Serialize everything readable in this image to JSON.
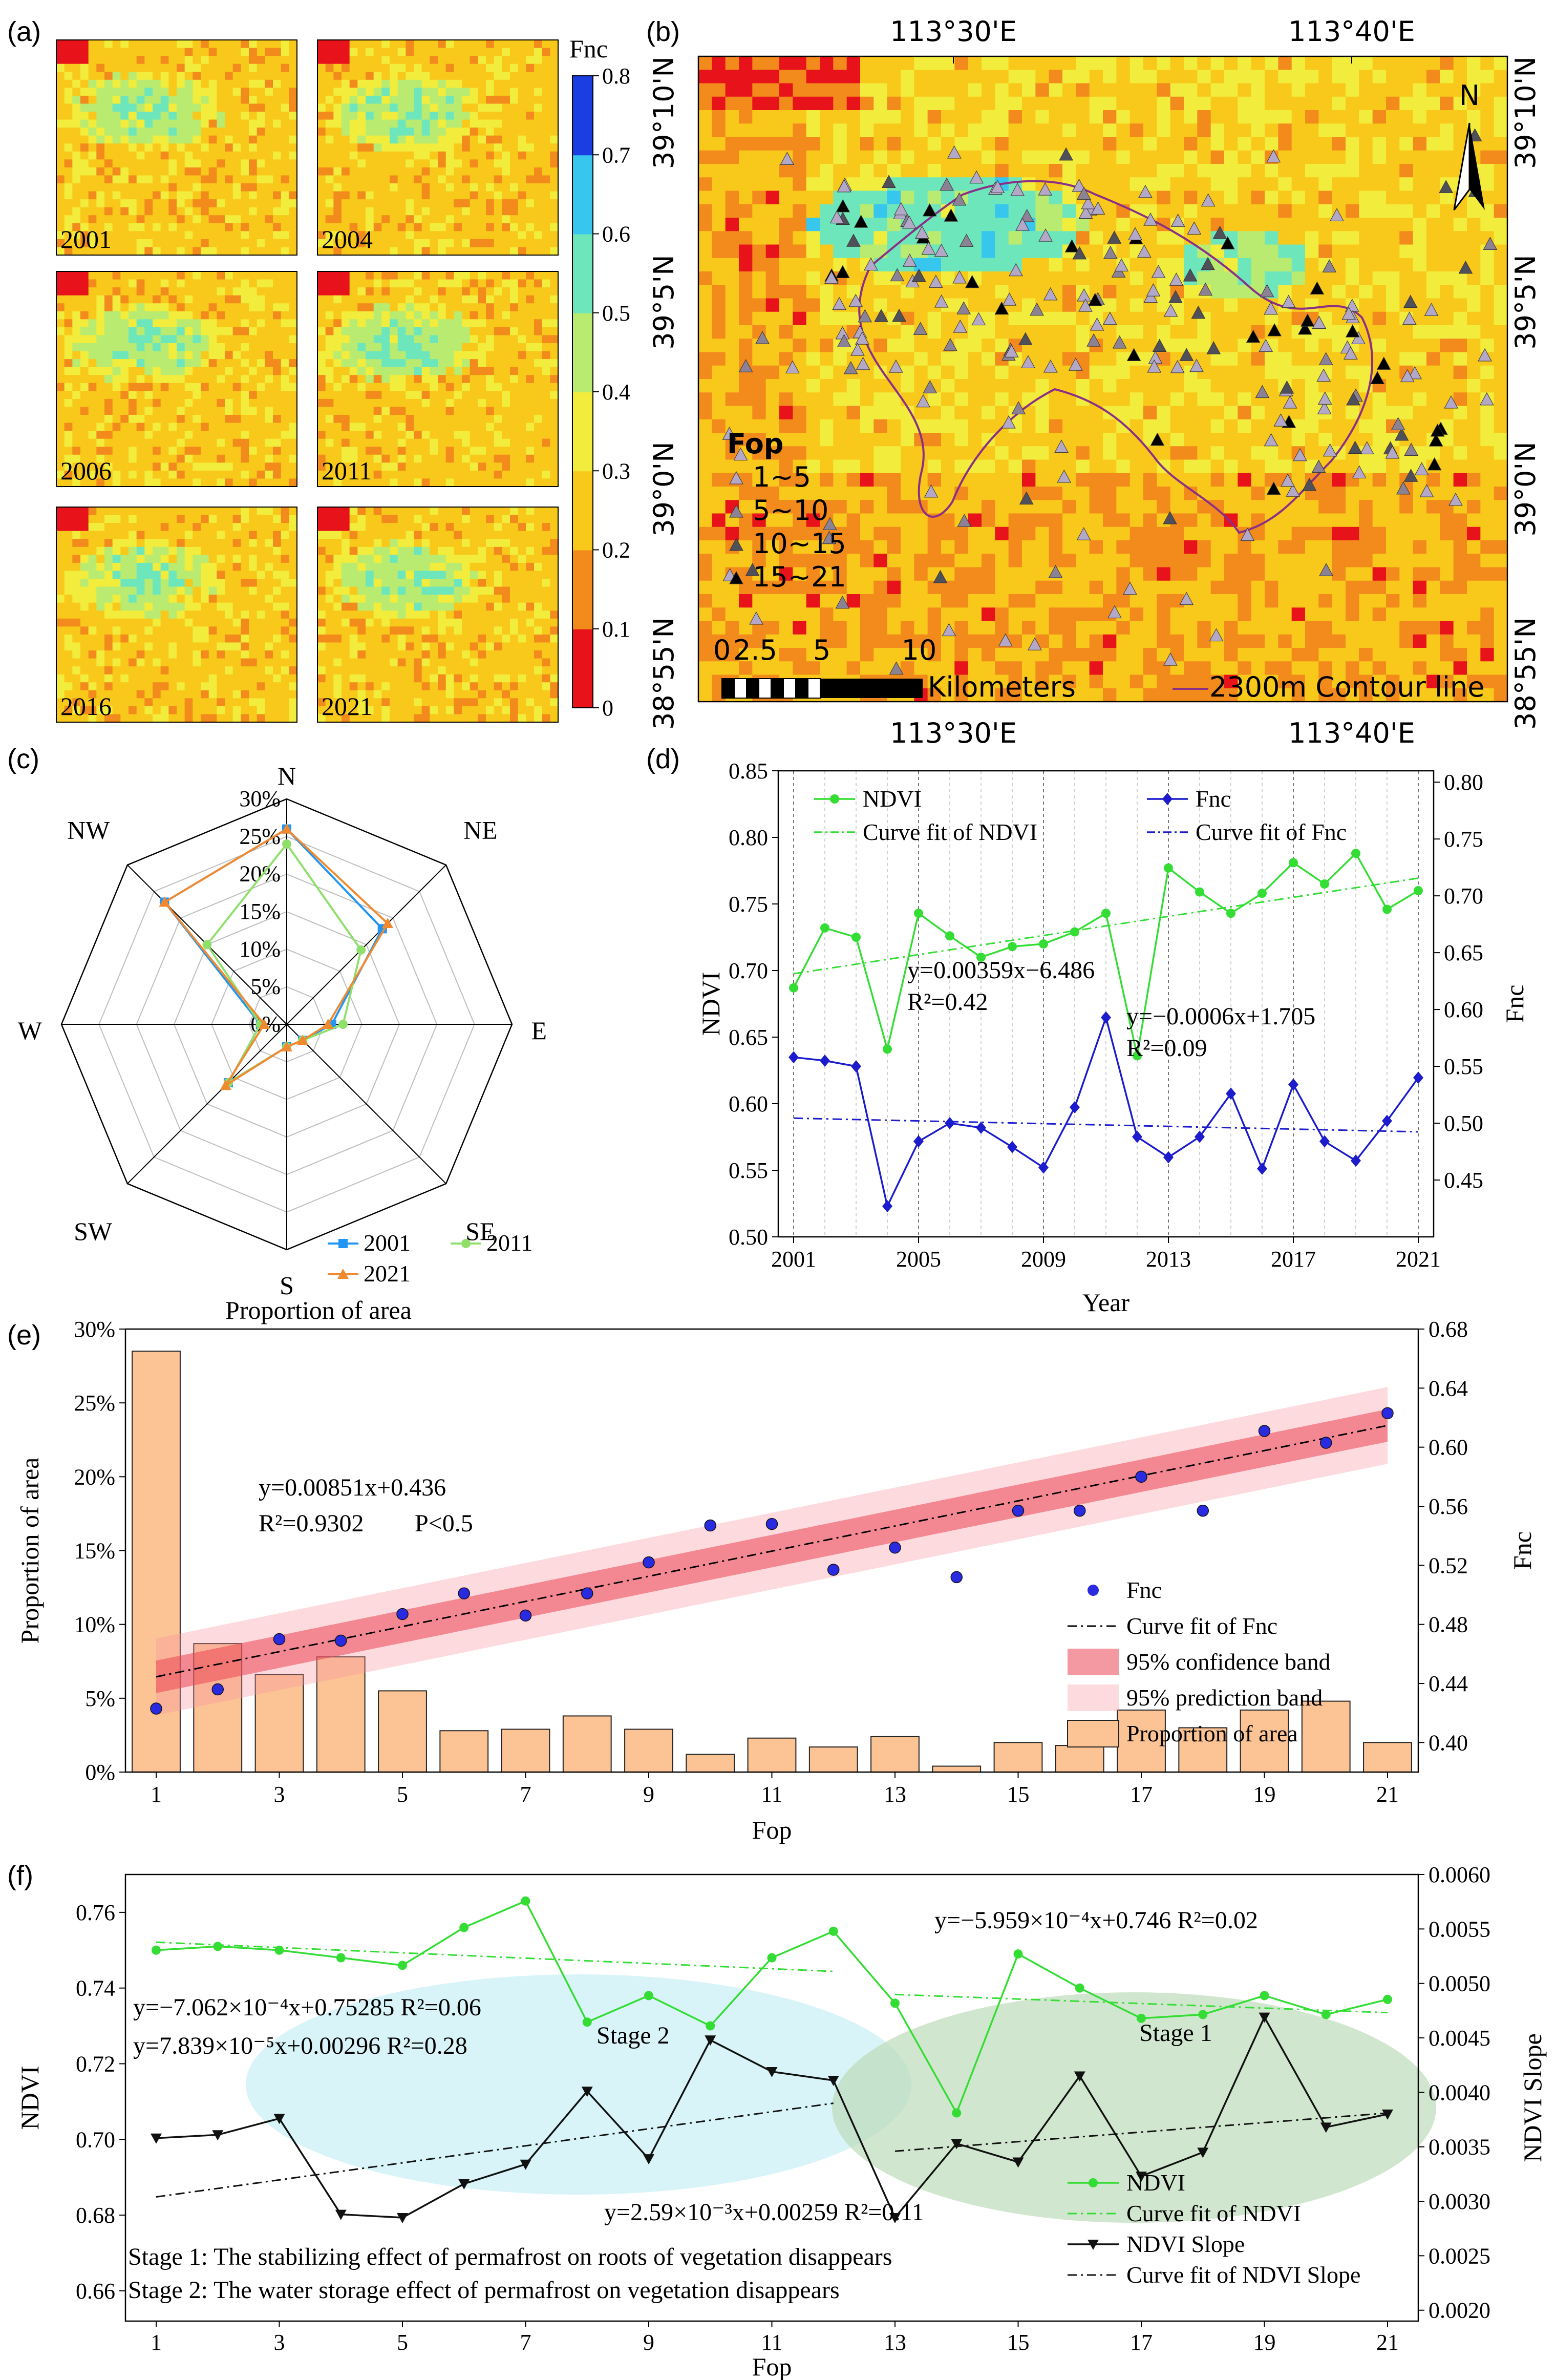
{
  "panels": {
    "a": {
      "tag": "(a)",
      "colorbar_title": "Fnc",
      "colorbar_ticks": [
        "0",
        "0.1",
        "0.2",
        "0.3",
        "0.4",
        "0.5",
        "0.6",
        "0.7",
        "0.8"
      ],
      "colorbar_colors": [
        "#e8121b",
        "#f28a1c",
        "#f8c81a",
        "#f2ec3c",
        "#b8eb70",
        "#6ee6bc",
        "#36c6ee",
        "#3a86ee",
        "#1a3ee2"
      ],
      "years": [
        "2001",
        "2004",
        "2006",
        "2011",
        "2016",
        "2021"
      ]
    },
    "b": {
      "tag": "(b)",
      "top_lon_labels": [
        "113°30'E",
        "113°40'E"
      ],
      "bottom_lon_labels": [
        "113°30'E",
        "113°40'E"
      ],
      "left_lat_labels": [
        "39°10'N",
        "39°5'N",
        "39°0'N",
        "38°55'N"
      ],
      "right_lat_labels": [
        "39°10'N",
        "39°5'N",
        "39°0'N",
        "38°55'N"
      ],
      "north_label": "N",
      "legend_title": "Fop",
      "legend_items": [
        "1~5",
        "5~10",
        "10~15",
        "15~21"
      ],
      "legend_marker_colors": [
        "#b4a8c8",
        "#8c8296",
        "#50505a",
        "#000000"
      ],
      "scale_labels": [
        "0",
        "2.5",
        "5",
        "10"
      ],
      "scale_unit": "Kilometers",
      "contour_label": "2300m Contour line",
      "contour_color": "#8a2e86"
    },
    "c": {
      "tag": "(c)",
      "directions": [
        "N",
        "NE",
        "E",
        "SE",
        "S",
        "SW",
        "W",
        "NW"
      ],
      "radial_ticks": [
        "0%",
        "5%",
        "10%",
        "15%",
        "20%",
        "25%",
        "30%"
      ],
      "caption": "Proportion of area",
      "chart_data": {
        "type": "radar",
        "categories": [
          "N",
          "NE",
          "E",
          "SE",
          "S",
          "SW",
          "W",
          "NW"
        ],
        "rmax": 30,
        "series": [
          {
            "name": "2001",
            "color": "#2196f3",
            "marker": "square",
            "values": [
              26,
              18,
              6,
              3,
              3,
              11,
              3.5,
              23
            ]
          },
          {
            "name": "2011",
            "color": "#8fe06a",
            "marker": "circle",
            "values": [
              24,
              14,
              7.5,
              3,
              3,
              11,
              3.5,
              15
            ]
          },
          {
            "name": "2021",
            "color": "#f08a30",
            "marker": "triangle",
            "values": [
              26,
              19,
              5.5,
              3,
              3,
              11.5,
              3,
              23
            ]
          }
        ]
      }
    },
    "d": {
      "tag": "(d)",
      "xlabel": "Year",
      "ylabel": "NDVI",
      "y2label": "Fnc",
      "legend": [
        "NDVI",
        "Fnc",
        "Curve fit of NDVI",
        "Curve fit of Fnc"
      ],
      "eq1": "y=0.00359x−6.486",
      "r2_1": "R²=0.42",
      "eq2": "y=−0.0006x+1.705",
      "r2_2": "R²=0.09",
      "chart_data": {
        "type": "line",
        "x": [
          2001,
          2002,
          2003,
          2004,
          2005,
          2006,
          2007,
          2008,
          2009,
          2010,
          2011,
          2012,
          2013,
          2014,
          2015,
          2016,
          2017,
          2018,
          2019,
          2020,
          2021
        ],
        "xticks": [
          "2001",
          "2005",
          "2009",
          "2013",
          "2017",
          "2021"
        ],
        "ylim": [
          0.5,
          0.85
        ],
        "yticks": [
          "0.50",
          "0.55",
          "0.60",
          "0.65",
          "0.70",
          "0.75",
          "0.80",
          "0.85"
        ],
        "y2lim": [
          0.4,
          0.81
        ],
        "y2ticks": [
          "0.45",
          "0.50",
          "0.55",
          "0.60",
          "0.65",
          "0.70",
          "0.75",
          "0.80"
        ],
        "series": [
          {
            "name": "NDVI",
            "axis": "left",
            "color": "#33dd33",
            "values": [
              0.687,
              0.732,
              0.725,
              0.641,
              0.743,
              0.726,
              0.71,
              0.718,
              0.72,
              0.729,
              0.743,
              0.636,
              0.777,
              0.759,
              0.743,
              0.758,
              0.781,
              0.765,
              0.788,
              0.746,
              0.76
            ],
            "fit": [
              0.00359,
              -6.486
            ]
          },
          {
            "name": "Fnc",
            "axis": "right",
            "color": "#1c1ccc",
            "values": [
              0.558,
              0.555,
              0.55,
              0.427,
              0.484,
              0.5,
              0.496,
              0.479,
              0.461,
              0.514,
              0.593,
              0.488,
              0.47,
              0.488,
              0.526,
              0.46,
              0.534,
              0.484,
              0.467,
              0.502,
              0.54
            ],
            "fit": [
              -0.0006,
              1.705
            ]
          }
        ]
      }
    },
    "e": {
      "tag": "(e)",
      "xlabel": "Fop",
      "ylabel": "Proportion of area",
      "y2label": "Fnc",
      "eq": "y=0.00851x+0.436",
      "r2": "R²=0.9302",
      "p": "P<0.5",
      "legend": [
        "Fnc",
        "Curve fit of Fnc",
        "95% confidence band",
        "95% prediction band",
        "Proportion of area"
      ],
      "chart_data": {
        "type": "bar",
        "categories": [
          1,
          2,
          3,
          4,
          5,
          6,
          7,
          8,
          9,
          10,
          11,
          12,
          13,
          14,
          15,
          16,
          17,
          18,
          19,
          20,
          21
        ],
        "xticks": [
          "1",
          "3",
          "5",
          "7",
          "9",
          "11",
          "13",
          "15",
          "17",
          "19",
          "21"
        ],
        "ylim": [
          0,
          30
        ],
        "yticks": [
          "0%",
          "5%",
          "10%",
          "15%",
          "20%",
          "25%",
          "30%"
        ],
        "y2lim": [
          0.38,
          0.68
        ],
        "y2ticks": [
          "0.40",
          "0.44",
          "0.48",
          "0.52",
          "0.56",
          "0.60",
          "0.64",
          "0.68"
        ],
        "bars": {
          "name": "Proportion of area",
          "color": "#fcc394",
          "values": [
            28.5,
            8.7,
            6.6,
            7.8,
            5.5,
            2.8,
            2.9,
            3.8,
            2.9,
            1.2,
            2.3,
            1.7,
            2.4,
            0.4,
            2.0,
            1.8,
            4.2,
            3.0,
            4.2,
            4.8,
            2.0
          ]
        },
        "points": {
          "name": "Fnc",
          "color": "#2a2ae0",
          "values": [
            0.423,
            0.436,
            0.47,
            0.469,
            0.487,
            0.501,
            0.486,
            0.501,
            0.522,
            0.547,
            0.548,
            0.517,
            0.532,
            0.512,
            0.557,
            0.557,
            0.58,
            0.557,
            0.611,
            0.603,
            0.623
          ]
        },
        "fit": [
          0.00851,
          0.436
        ]
      }
    },
    "f": {
      "tag": "(f)",
      "xlabel": "Fop",
      "ylabel": "NDVI",
      "y2label": "NDVI Slope",
      "eq_top": "y=−5.959×10⁻⁴x+0.746    R²=0.02",
      "eq_a": "y=−7.062×10⁻⁴x+0.75285    R²=0.06",
      "eq_b": "y=7.839×10⁻⁵x+0.00296    R²=0.28",
      "eq_c": "y=2.59×10⁻³x+0.00259    R²=0.11",
      "stage1": "Stage 1",
      "stage2": "Stage 2",
      "note1": "Stage 1: The stabilizing effect of permafrost on roots of vegetation disappears",
      "note2": "Stage 2: The water storage effect of permafrost on vegetation disappears",
      "legend": [
        "NDVI",
        "Curve fit of NDVI",
        "NDVI Slope",
        "Curve fit of NDVI Slope"
      ],
      "chart_data": {
        "type": "line",
        "x": [
          1,
          2,
          3,
          4,
          5,
          6,
          7,
          8,
          9,
          10,
          11,
          12,
          13,
          14,
          15,
          16,
          17,
          18,
          19,
          20,
          21
        ],
        "xticks": [
          "1",
          "3",
          "5",
          "7",
          "9",
          "11",
          "13",
          "15",
          "17",
          "19",
          "21"
        ],
        "ylim": [
          0.652,
          0.77
        ],
        "yticks": [
          "0.66",
          "0.68",
          "0.70",
          "0.72",
          "0.74",
          "0.76"
        ],
        "y2lim": [
          0.0019,
          0.006
        ],
        "y2ticks": [
          "0.0020",
          "0.0025",
          "0.0030",
          "0.0035",
          "0.0040",
          "0.0045",
          "0.0050",
          "0.0055",
          "0.0060"
        ],
        "series": [
          {
            "name": "NDVI",
            "axis": "left",
            "color": "#33dd33",
            "values": [
              0.75,
              0.751,
              0.75,
              0.748,
              0.746,
              0.756,
              0.763,
              0.731,
              0.738,
              0.73,
              0.748,
              0.755,
              0.736,
              0.707,
              0.749,
              0.74,
              0.732,
              0.733,
              0.738,
              0.733,
              0.737
            ]
          },
          {
            "name": "NDVI Slope",
            "axis": "right",
            "color": "#111111",
            "values": [
              0.00358,
              0.00361,
              0.00376,
              0.00288,
              0.00285,
              0.00316,
              0.00334,
              0.00401,
              0.00339,
              0.00448,
              0.00419,
              0.00411,
              0.00285,
              0.00353,
              0.00336,
              0.00415,
              0.00323,
              0.00345,
              0.00469,
              0.00368,
              0.0038
            ]
          }
        ]
      }
    }
  }
}
